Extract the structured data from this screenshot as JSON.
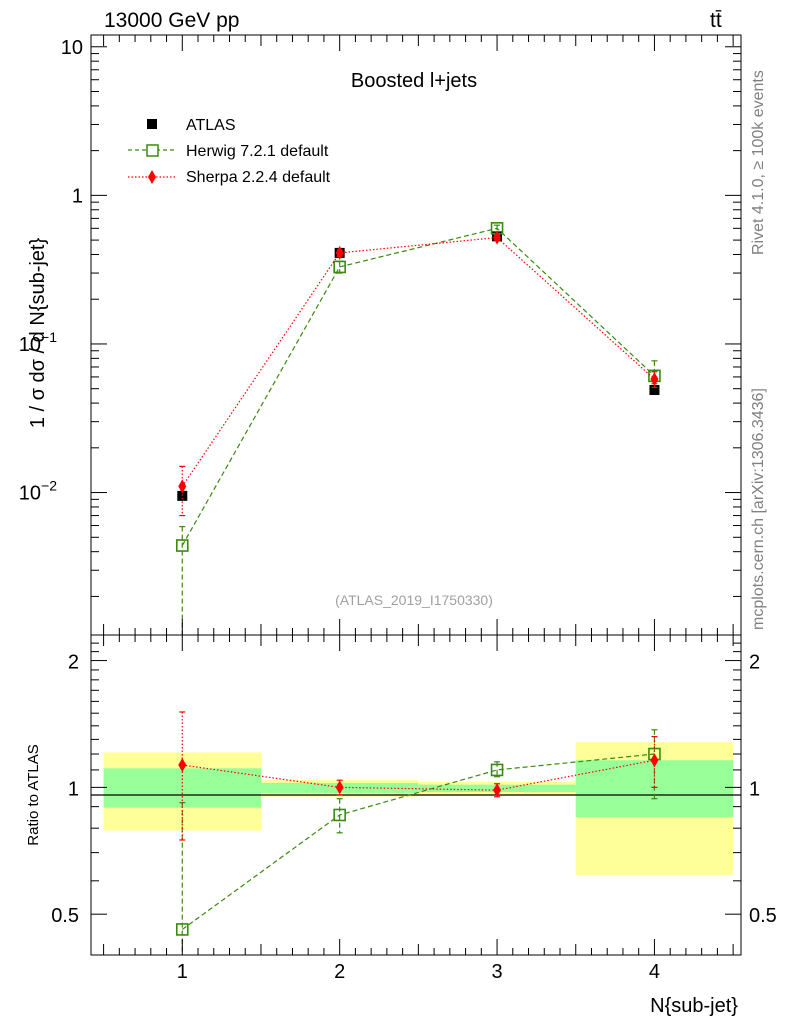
{
  "header": {
    "energy_label": "13000 GeV pp",
    "process_label": "tt̄"
  },
  "side_labels": {
    "rivet": "Rivet 4.1.0, ≥ 100k events",
    "mcplots": "mcplots.cern.ch [arXiv:1306.3436]"
  },
  "watermark": "(ATLAS_2019_I1750330)",
  "chart_data": [
    {
      "type": "scatter",
      "title": "Boosted l+jets",
      "xlabel": "N{sub-jet}",
      "ylabel": "1 / σ dσ / d N{sub-jet}",
      "yscale": "log",
      "xlim": [
        0.42,
        4.55
      ],
      "ylim": [
        0.0011,
        12
      ],
      "x_ticks": [
        1,
        2,
        3,
        4
      ],
      "y_major_ticks": [
        {
          "value": 0.01,
          "label": "10",
          "exp": "−2"
        },
        {
          "value": 0.1,
          "label": "10",
          "exp": "−1"
        },
        {
          "value": 1,
          "label": "1",
          "exp": ""
        },
        {
          "value": 10,
          "label": "10",
          "exp": ""
        }
      ],
      "legend_position": "top-left",
      "series": [
        {
          "name": "ATLAS",
          "style": "data",
          "color": "#000000",
          "x": [
            1,
            2,
            3,
            4
          ],
          "y": [
            0.0095,
            0.41,
            0.53,
            0.049
          ],
          "yerr_low": [
            0.0,
            0.0,
            0.0,
            0.0
          ],
          "yerr_high": [
            0.0,
            0.0,
            0.0,
            0.0
          ]
        },
        {
          "name": "Herwig 7.2.1 default",
          "style": "herwig",
          "color": "#3a8a0f",
          "x": [
            1,
            2,
            3,
            4
          ],
          "y": [
            0.0044,
            0.33,
            0.6,
            0.061
          ],
          "yerr_low": [
            0.0044,
            0.03,
            0.03,
            0.007
          ],
          "yerr_high": [
            0.0015,
            0.03,
            0.03,
            0.016
          ]
        },
        {
          "name": "Sherpa 2.2.4 default",
          "style": "sherpa",
          "color": "#ff0000",
          "x": [
            1,
            2,
            3,
            4
          ],
          "y": [
            0.011,
            0.41,
            0.52,
            0.058
          ],
          "yerr_low": [
            0.004,
            0.02,
            0.02,
            0.007
          ],
          "yerr_high": [
            0.004,
            0.02,
            0.02,
            0.007
          ]
        }
      ]
    },
    {
      "type": "scatter",
      "title": "",
      "xlabel": "N{sub-jet}",
      "ylabel": "Ratio to ATLAS",
      "xlim": [
        0.42,
        4.55
      ],
      "ylim": [
        0.4,
        2.3
      ],
      "y_ticks": [
        0.5,
        1,
        2
      ],
      "y_tick_labels": [
        "0.5",
        "1",
        "2"
      ],
      "x_ticks": [
        1,
        2,
        3,
        4
      ],
      "x_tick_labels": [
        "1",
        "2",
        "3",
        "4"
      ],
      "uncertainty_bands": [
        {
          "x_low": 0.5,
          "x_high": 1.5,
          "inner_low": 0.895,
          "inner_high": 1.11,
          "outer_low": 0.79,
          "outer_high": 1.21
        },
        {
          "x_low": 1.5,
          "x_high": 2.5,
          "inner_low": 0.97,
          "inner_high": 1.025,
          "outer_low": 0.95,
          "outer_high": 1.04
        },
        {
          "x_low": 2.5,
          "x_high": 3.5,
          "inner_low": 0.975,
          "inner_high": 1.015,
          "outer_low": 0.955,
          "outer_high": 1.03
        },
        {
          "x_low": 3.5,
          "x_high": 4.5,
          "inner_low": 0.85,
          "inner_high": 1.16,
          "outer_low": 0.62,
          "outer_high": 1.28
        }
      ],
      "series": [
        {
          "name": "Herwig 7.2.1 default",
          "style": "herwig",
          "color": "#3a8a0f",
          "x": [
            1,
            2,
            3,
            4
          ],
          "y": [
            0.46,
            0.86,
            1.1,
            1.2
          ],
          "yerr_low": [
            0.46,
            0.08,
            0.04,
            0.26
          ],
          "yerr_high": [
            0.46,
            0.08,
            0.05,
            0.17
          ]
        },
        {
          "name": "Sherpa 2.2.4 default",
          "style": "sherpa",
          "color": "#ff0000",
          "x": [
            1,
            2,
            3,
            4
          ],
          "y": [
            1.13,
            1.0,
            0.985,
            1.16
          ],
          "yerr_low": [
            0.38,
            0.04,
            0.035,
            0.16
          ],
          "yerr_high": [
            0.38,
            0.04,
            0.035,
            0.16
          ]
        }
      ]
    }
  ]
}
